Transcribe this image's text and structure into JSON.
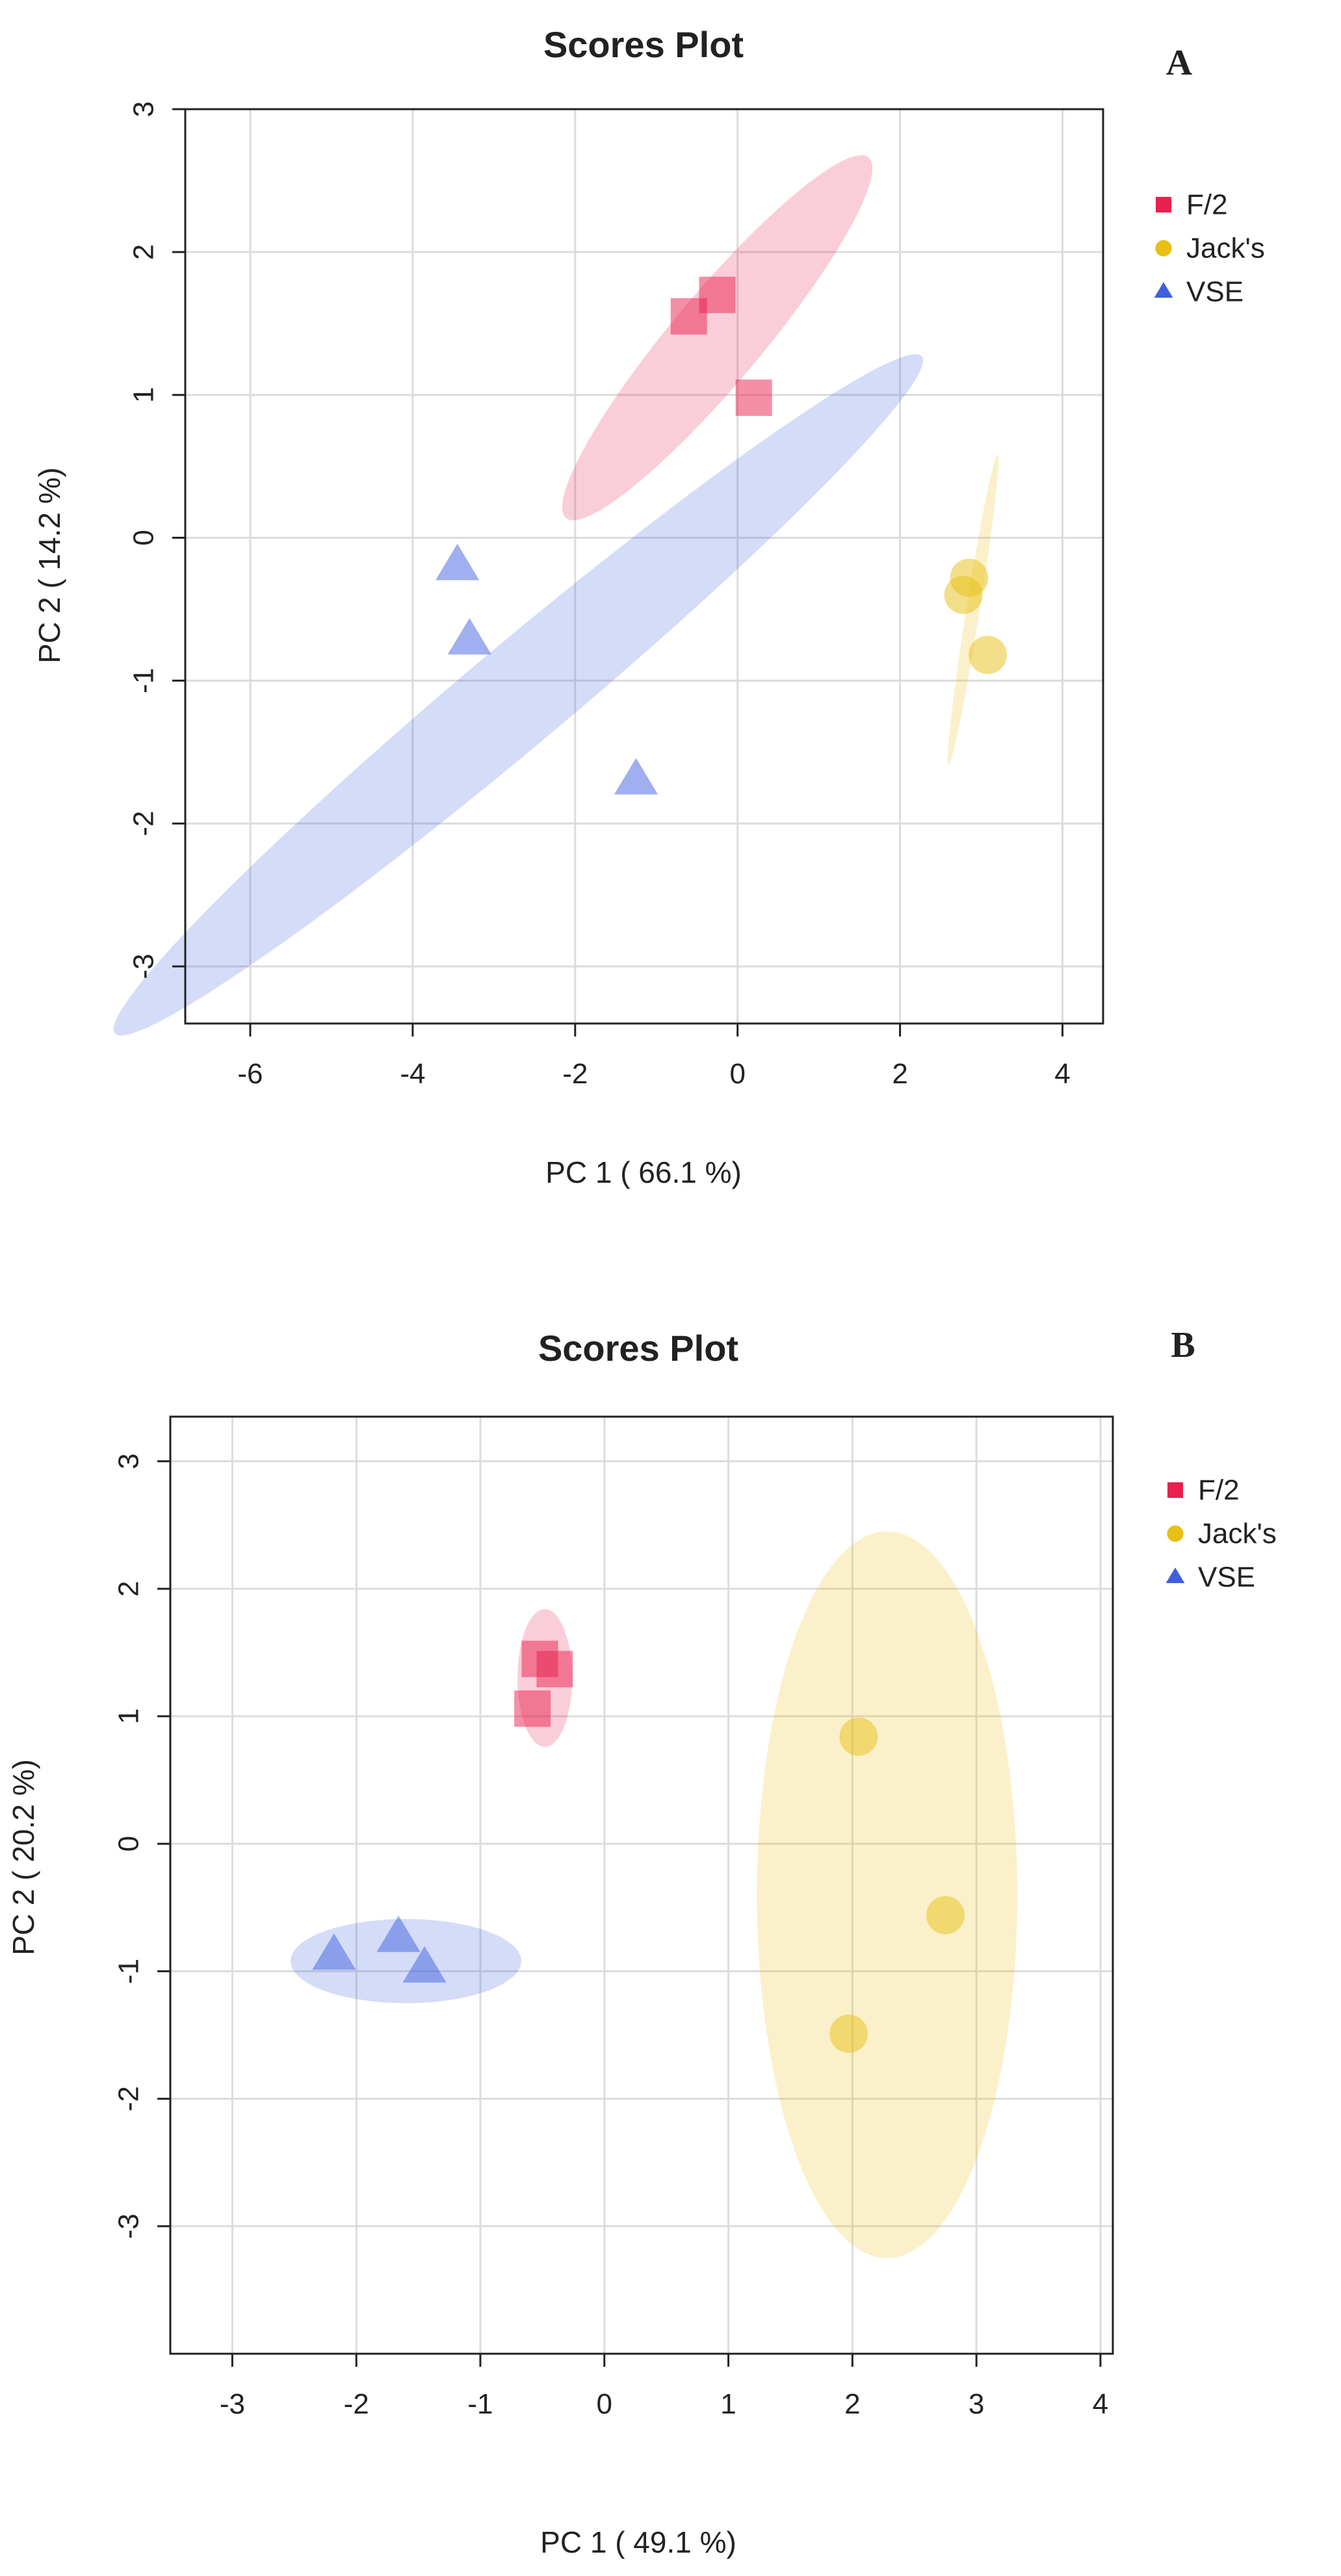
{
  "colors": {
    "F/2": "#e8204e",
    "Jack's": "#e8bf14",
    "VSE": "#3f5fe0",
    "grid": "#dcdcdc",
    "axis": "#222222"
  },
  "chart_data": [
    {
      "type": "scatter",
      "panel_label": "A",
      "title": "Scores Plot",
      "xlabel": "PC 1 ( 66.1 %)",
      "ylabel": "PC 2 ( 14.2 %)",
      "xlim": [
        -6.8,
        4.5
      ],
      "ylim": [
        -3.4,
        3.0
      ],
      "xticks": [
        -6,
        -4,
        -2,
        0,
        2,
        4
      ],
      "yticks": [
        -3,
        -2,
        -1,
        0,
        1,
        2,
        3
      ],
      "grid": true,
      "legend": "top-right, outside plot",
      "series": [
        {
          "name": "F/2",
          "marker": "square",
          "points": [
            [
              -0.6,
              1.55
            ],
            [
              -0.25,
              1.7
            ],
            [
              0.2,
              0.98
            ]
          ],
          "ellipse": {
            "center": [
              -0.25,
              1.4
            ],
            "rx": 2.1,
            "ry": 0.4,
            "angle_deg": -50
          }
        },
        {
          "name": "Jack's",
          "marker": "circle",
          "points": [
            [
              2.85,
              -0.28
            ],
            [
              2.78,
              -0.4
            ],
            [
              3.08,
              -0.82
            ]
          ],
          "ellipse": {
            "center": [
              2.9,
              -0.5
            ],
            "rx": 1.4,
            "ry": 0.06,
            "angle_deg": -81
          }
        },
        {
          "name": "VSE",
          "marker": "triangle",
          "points": [
            [
              -3.45,
              -0.2
            ],
            [
              -3.3,
              -0.72
            ],
            [
              -1.25,
              -1.7
            ]
          ],
          "ellipse": {
            "center": [
              -2.7,
              -1.1
            ],
            "rx": 4.7,
            "ry": 0.45,
            "angle_deg": -40
          }
        }
      ]
    },
    {
      "type": "scatter",
      "panel_label": "B",
      "title": "Scores Plot",
      "xlabel": "PC 1 ( 49.1 %)",
      "ylabel": "PC 2 ( 20.2 %)",
      "xlim": [
        -3.5,
        4.1
      ],
      "ylim": [
        -4.0,
        3.35
      ],
      "xticks": [
        -3,
        -2,
        -1,
        0,
        1,
        2,
        3,
        4
      ],
      "yticks": [
        -3,
        -2,
        -1,
        0,
        1,
        2,
        3
      ],
      "grid": true,
      "legend": "top-right, outside plot",
      "series": [
        {
          "name": "F/2",
          "marker": "square",
          "points": [
            [
              -0.52,
              1.45
            ],
            [
              -0.4,
              1.37
            ],
            [
              -0.58,
              1.06
            ]
          ],
          "ellipse": {
            "center": [
              -0.48,
              1.3
            ],
            "rx": 0.22,
            "ry": 0.54,
            "angle_deg": 0
          }
        },
        {
          "name": "Jack's",
          "marker": "circle",
          "points": [
            [
              2.05,
              0.84
            ],
            [
              2.75,
              -0.56
            ],
            [
              1.97,
              -1.49
            ]
          ],
          "ellipse": {
            "center": [
              2.28,
              -0.4
            ],
            "rx": 1.05,
            "ry": 2.85,
            "angle_deg": 0
          }
        },
        {
          "name": "VSE",
          "marker": "triangle",
          "points": [
            [
              -2.18,
              -0.88
            ],
            [
              -1.66,
              -0.74
            ],
            [
              -1.45,
              -0.98
            ]
          ],
          "ellipse": {
            "center": [
              -1.6,
              -0.92
            ],
            "rx": 0.93,
            "ry": 0.33,
            "angle_deg": 0
          }
        }
      ]
    }
  ]
}
